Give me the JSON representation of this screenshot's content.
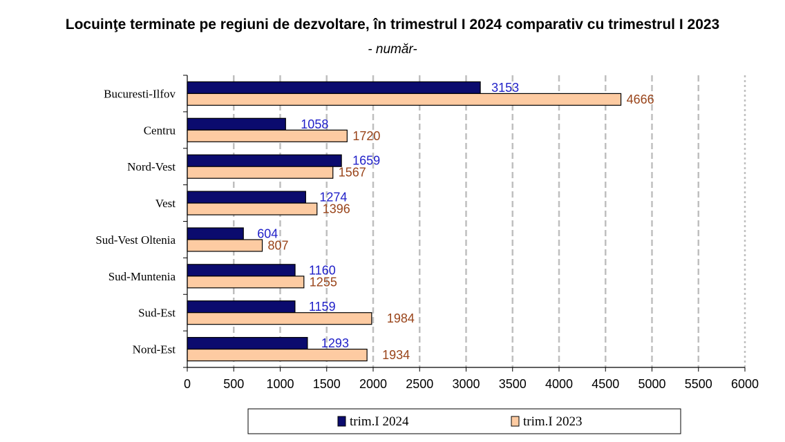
{
  "chart_data": {
    "type": "bar",
    "orientation": "horizontal",
    "title": "Locuinţe terminate pe regiuni de dezvoltare, în trimestrul I 2024 comparativ cu trimestrul I 2023",
    "subtitle": "- număr-",
    "categories": [
      "Bucuresti-Ilfov",
      "Centru",
      "Nord-Vest",
      "Vest",
      "Sud-Vest Oltenia",
      "Sud-Muntenia",
      "Sud-Est",
      "Nord-Est"
    ],
    "series": [
      {
        "name": "trim.I 2024",
        "values": [
          3153,
          1058,
          1659,
          1274,
          604,
          1160,
          1159,
          1293
        ],
        "color": "#0b0b6e",
        "label_color": "#1f1fc8"
      },
      {
        "name": "trim.I 2023",
        "values": [
          4666,
          1720,
          1567,
          1396,
          807,
          1255,
          1984,
          1934
        ],
        "color": "#fdcba2",
        "label_color": "#99441a"
      }
    ],
    "xlim": [
      0,
      6000
    ],
    "xticks": [
      "0",
      "500",
      "1000",
      "1500",
      "2000",
      "2500",
      "3000",
      "3500",
      "4000",
      "4500",
      "5000",
      "5500",
      "6000"
    ],
    "grid": "vertical dashed",
    "legend": "bottom"
  }
}
